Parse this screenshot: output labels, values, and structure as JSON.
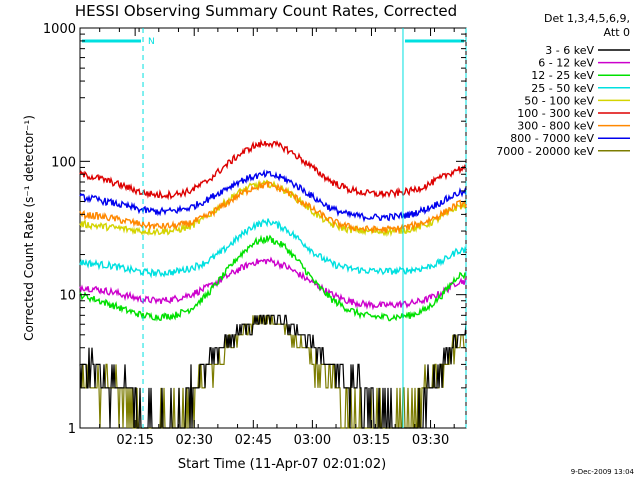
{
  "chart_data": {
    "type": "line",
    "title": "HESSI Observing Summary Count Rates, Corrected",
    "xlabel": "Start Time (11-Apr-07 02:01:02)",
    "ylabel": "Corrected Count Rate (s⁻¹ detector⁻¹)",
    "y_scale": "log",
    "ylim": [
      1,
      1000
    ],
    "xlim": [
      0,
      98
    ],
    "x_units": "minutes after 02:01:02",
    "x_ticks": [
      {
        "x": 14,
        "label": "02:15"
      },
      {
        "x": 29,
        "label": "02:30"
      },
      {
        "x": 44,
        "label": "02:45"
      },
      {
        "x": 59,
        "label": "03:00"
      },
      {
        "x": 74,
        "label": "03:15"
      },
      {
        "x": 89,
        "label": "03:30"
      }
    ],
    "y_ticks": [
      {
        "y": 1,
        "label": "1"
      },
      {
        "y": 10,
        "label": "10"
      },
      {
        "y": 100,
        "label": "100"
      },
      {
        "y": 1000,
        "label": "1000"
      }
    ],
    "legend_header": [
      "Det 1,3,4,5,6,9,",
      "Att 0"
    ],
    "legend_position": "right",
    "night_bars": [
      {
        "x0": 0,
        "x1": 16,
        "label": "N"
      },
      {
        "x0": 82,
        "x1": 98,
        "label": ""
      }
    ],
    "vlines_dashed": [
      16,
      98
    ],
    "vlines_solid": [
      82
    ],
    "series": [
      {
        "name": "3 - 6 keV",
        "color": "#000000",
        "values": [
          3.0,
          3.0,
          2.0,
          2.0,
          1.0,
          1.0,
          1.0,
          2.0,
          3.0,
          4.0,
          5.0,
          6.0,
          7.0,
          6.0,
          5.0,
          4.0,
          3.0,
          2.0,
          2.0,
          1.0,
          1.0,
          1.0,
          2.0,
          3.0,
          5.0
        ]
      },
      {
        "name": "6 - 12 keV",
        "color": "#cc00cc",
        "values": [
          11.5,
          11.0,
          10.5,
          9.8,
          9.2,
          9.0,
          9.3,
          10.0,
          11.2,
          13.0,
          15.3,
          17.5,
          18.0,
          16.5,
          14.0,
          11.8,
          10.0,
          9.0,
          8.5,
          8.3,
          8.4,
          8.6,
          9.2,
          10.4,
          12.6
        ]
      },
      {
        "name": "12 - 25 keV",
        "color": "#00e000",
        "values": [
          10.0,
          9.2,
          8.4,
          7.6,
          7.0,
          6.8,
          7.0,
          7.8,
          9.8,
          13.5,
          19.0,
          24.5,
          26.5,
          23.0,
          17.0,
          12.0,
          9.2,
          7.8,
          7.0,
          6.8,
          6.8,
          7.0,
          7.8,
          10.0,
          14.0
        ]
      },
      {
        "name": "25 - 50 keV",
        "color": "#00e0e0",
        "values": [
          17.5,
          17.0,
          16.5,
          15.5,
          14.8,
          14.5,
          14.8,
          15.8,
          17.5,
          21.0,
          26.5,
          33.0,
          35.5,
          31.5,
          25.5,
          20.0,
          17.0,
          15.8,
          15.2,
          15.0,
          15.0,
          15.3,
          16.0,
          17.8,
          21.5
        ]
      },
      {
        "name": "50 - 100 keV",
        "color": "#d4d400",
        "values": [
          34.0,
          33.0,
          32.0,
          31.0,
          30.0,
          29.8,
          30.2,
          32.5,
          38.0,
          47.0,
          58.0,
          66.0,
          68.0,
          61.0,
          50.0,
          40.0,
          33.5,
          31.0,
          30.0,
          29.8,
          30.0,
          31.0,
          33.5,
          38.5,
          46.0
        ]
      },
      {
        "name": "100 - 300 keV",
        "color": "#dd0000",
        "values": [
          80.0,
          76.0,
          70.0,
          64.0,
          58.0,
          56.0,
          56.5,
          60.0,
          70.0,
          88.0,
          110.0,
          130.0,
          138.0,
          126.0,
          105.0,
          85.0,
          70.0,
          62.0,
          58.0,
          57.0,
          57.5,
          60.0,
          66.0,
          76.0,
          88.0
        ]
      },
      {
        "name": "300 - 800 keV",
        "color": "#ff8800",
        "values": [
          40.0,
          39.0,
          37.5,
          35.5,
          33.5,
          32.5,
          32.8,
          34.5,
          38.5,
          46.0,
          55.0,
          64.0,
          67.0,
          60.5,
          50.5,
          42.0,
          35.5,
          32.5,
          31.0,
          30.8,
          31.0,
          32.5,
          35.5,
          40.5,
          48.0
        ]
      },
      {
        "name": "800 - 7000 keV",
        "color": "#0000ee",
        "values": [
          54.0,
          52.0,
          49.0,
          46.0,
          43.0,
          42.0,
          42.5,
          45.0,
          51.0,
          60.0,
          70.0,
          77.0,
          80.0,
          74.0,
          63.0,
          52.0,
          44.0,
          40.0,
          38.5,
          38.0,
          38.5,
          40.0,
          44.0,
          50.0,
          58.0
        ]
      },
      {
        "name": "7000 - 20000 keV",
        "color": "#7c7c00",
        "values": [
          2.2,
          2.0,
          2.0,
          1.6,
          1.0,
          1.0,
          1.0,
          1.6,
          2.5,
          3.5,
          5.0,
          6.0,
          6.5,
          5.5,
          4.0,
          3.0,
          2.2,
          1.6,
          1.0,
          1.0,
          1.0,
          1.2,
          2.0,
          3.0,
          4.5
        ]
      }
    ],
    "series_x": [
      0,
      4,
      8,
      12,
      16,
      20,
      24,
      28,
      32,
      36,
      40,
      44,
      48,
      52,
      56,
      60,
      64,
      68,
      72,
      76,
      80,
      84,
      88,
      92,
      96
    ]
  },
  "footer": {
    "timestamp": "9-Dec-2009 13:04"
  }
}
